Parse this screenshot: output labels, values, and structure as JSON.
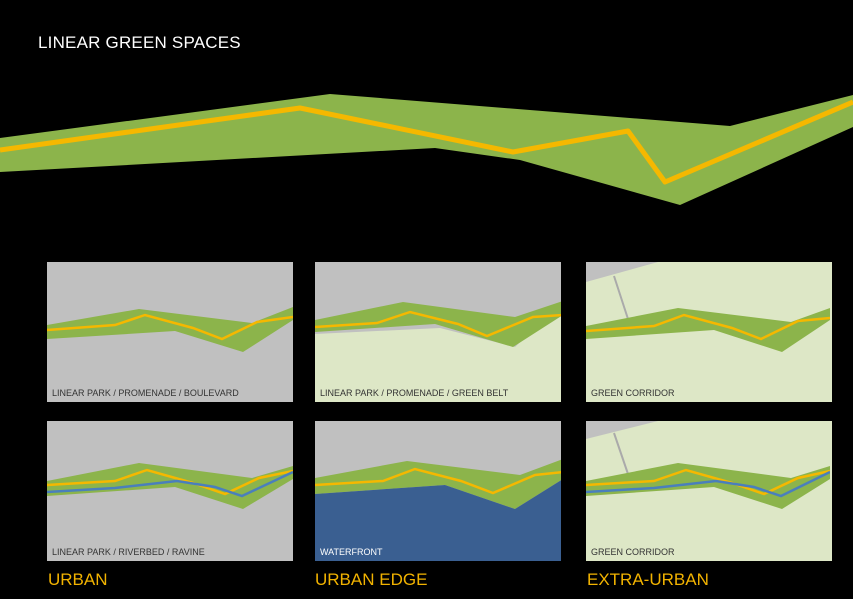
{
  "title": "LINEAR GREEN SPACES",
  "colors": {
    "band": "#8cb44b",
    "path": "#f5b800",
    "water": "#3a6fae",
    "urban_bg": "#c0c0c0",
    "rural_bg": "#dde7c6",
    "waterfront": "#3a5f91",
    "heading": "#f2b300"
  },
  "columns": [
    {
      "label": "URBAN"
    },
    {
      "label": "URBAN EDGE"
    },
    {
      "label": "EXTRA-URBAN"
    }
  ],
  "panels": [
    {
      "caption": "LINEAR PARK / PROMENADE / BOULEVARD",
      "type": "urban"
    },
    {
      "caption": "LINEAR PARK / PROMENADE / GREEN BELT",
      "type": "edge"
    },
    {
      "caption": "GREEN CORRIDOR",
      "type": "extra"
    },
    {
      "caption": "LINEAR PARK / RIVERBED / RAVINE",
      "type": "urban-river"
    },
    {
      "caption": "WATERFRONT",
      "type": "waterfront"
    },
    {
      "caption": "GREEN CORRIDOR",
      "type": "extra-river"
    }
  ]
}
